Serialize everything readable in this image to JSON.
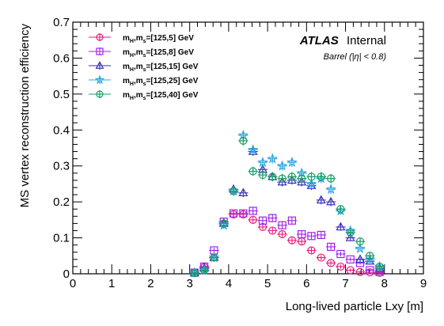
{
  "chart_data": {
    "type": "scatter",
    "title": "",
    "xlabel": "Long-lived particle Lxy [m]",
    "ylabel": "MS vertex reconstruction efficiency",
    "xlim": [
      0,
      9
    ],
    "ylim": [
      0,
      0.7
    ],
    "x_ticks": [
      "0",
      "1",
      "2",
      "3",
      "4",
      "5",
      "6",
      "7",
      "8",
      "9"
    ],
    "y_ticks": [
      "0",
      "0.1",
      "0.2",
      "0.3",
      "0.4",
      "0.5",
      "0.6",
      "0.7"
    ],
    "grid": false,
    "legend_position": "top-left",
    "x_bin_half_width": 0.125,
    "annotations": {
      "experiment": "ATLAS",
      "status": "Internal",
      "region": "Barrel  (|η| < 0.8)"
    },
    "series": [
      {
        "name": "m_H,m_s=[125,5] GeV",
        "legend_main": "m",
        "legend_sub1": "H",
        "legend_mid": ",m",
        "legend_sub2": "s",
        "legend_tail": "=[125,5] GeV",
        "marker": "circle",
        "color": "#e8197c",
        "x": [
          3.125,
          3.375,
          3.625,
          3.875,
          4.125,
          4.375,
          4.625,
          4.875,
          5.125,
          5.375,
          5.625,
          5.875,
          6.125,
          6.375,
          6.625,
          6.875,
          7.125,
          7.375,
          7.625,
          7.875
        ],
        "y": [
          0.003,
          0.018,
          0.045,
          0.14,
          0.165,
          0.165,
          0.15,
          0.13,
          0.12,
          0.11,
          0.093,
          0.09,
          0.065,
          0.045,
          0.03,
          0.02,
          0.01,
          0.005,
          0.004,
          0.003
        ],
        "yerr": [
          0.003,
          0.005,
          0.006,
          0.008,
          0.008,
          0.008,
          0.008,
          0.008,
          0.008,
          0.008,
          0.008,
          0.008,
          0.008,
          0.007,
          0.007,
          0.006,
          0.005,
          0.004,
          0.004,
          0.003
        ]
      },
      {
        "name": "m_H,m_s=[125,8] GeV",
        "legend_main": "m",
        "legend_sub1": "H",
        "legend_mid": ",m",
        "legend_sub2": "s",
        "legend_tail": "=[125,8] GeV",
        "marker": "square",
        "color": "#a020f0",
        "x": [
          3.125,
          3.375,
          3.625,
          3.875,
          4.125,
          4.375,
          4.625,
          4.875,
          5.125,
          5.375,
          5.625,
          5.875,
          6.125,
          6.375,
          6.625,
          6.875,
          7.125,
          7.375,
          7.625,
          7.875
        ],
        "y": [
          0.003,
          0.02,
          0.065,
          0.145,
          0.168,
          0.168,
          0.175,
          0.148,
          0.155,
          0.135,
          0.148,
          0.11,
          0.105,
          0.108,
          0.075,
          0.055,
          0.04,
          0.03,
          0.01,
          0.005
        ],
        "yerr": [
          0.003,
          0.005,
          0.007,
          0.009,
          0.009,
          0.009,
          0.009,
          0.009,
          0.009,
          0.009,
          0.009,
          0.009,
          0.009,
          0.009,
          0.008,
          0.007,
          0.006,
          0.005,
          0.004,
          0.003
        ]
      },
      {
        "name": "m_H,m_s=[125,15] GeV",
        "legend_main": "m",
        "legend_sub1": "H",
        "legend_mid": ",m",
        "legend_sub2": "s",
        "legend_tail": "=[125,15] GeV",
        "marker": "triangle",
        "color": "#3b2fb5",
        "x": [
          3.125,
          3.375,
          3.625,
          3.875,
          4.125,
          4.375,
          4.625,
          4.875,
          5.125,
          5.375,
          5.625,
          5.875,
          6.125,
          6.375,
          6.625,
          6.875,
          7.125,
          7.375,
          7.625,
          7.875
        ],
        "y": [
          0.003,
          0.015,
          0.045,
          0.14,
          0.235,
          0.225,
          0.34,
          0.29,
          0.27,
          0.255,
          0.26,
          0.255,
          0.245,
          0.205,
          0.2,
          0.13,
          0.1,
          0.04,
          0.035,
          0.015
        ],
        "yerr": [
          0.003,
          0.005,
          0.007,
          0.01,
          0.012,
          0.012,
          0.012,
          0.012,
          0.012,
          0.012,
          0.012,
          0.012,
          0.012,
          0.012,
          0.012,
          0.01,
          0.009,
          0.006,
          0.005,
          0.004
        ]
      },
      {
        "name": "m_H,m_s=[125,25] GeV",
        "legend_main": "m",
        "legend_sub1": "H",
        "legend_mid": ",m",
        "legend_sub2": "s",
        "legend_tail": "=[125,25] GeV",
        "marker": "star",
        "color": "#2ca8e0",
        "x": [
          3.125,
          3.375,
          3.625,
          3.875,
          4.125,
          4.375,
          4.625,
          4.875,
          5.125,
          5.375,
          5.625,
          5.875,
          6.125,
          6.375,
          6.625,
          6.875,
          7.125,
          7.375,
          7.625,
          7.875
        ],
        "y": [
          0.003,
          0.01,
          0.045,
          0.135,
          0.23,
          0.385,
          0.345,
          0.31,
          0.32,
          0.3,
          0.31,
          0.28,
          0.25,
          0.265,
          0.235,
          0.175,
          0.12,
          0.07,
          0.04,
          0.02
        ],
        "yerr": [
          0.003,
          0.005,
          0.007,
          0.01,
          0.013,
          0.013,
          0.013,
          0.013,
          0.013,
          0.013,
          0.013,
          0.013,
          0.013,
          0.013,
          0.013,
          0.011,
          0.01,
          0.007,
          0.006,
          0.004
        ]
      },
      {
        "name": "m_H,m_s=[125,40] GeV",
        "legend_main": "m",
        "legend_sub1": "H",
        "legend_mid": ",m",
        "legend_sub2": "s",
        "legend_tail": "=[125,40] GeV",
        "marker": "crosscircle",
        "color": "#1f9e6a",
        "x": [
          3.125,
          3.375,
          3.625,
          3.875,
          4.125,
          4.375,
          4.625,
          4.875,
          5.125,
          5.375,
          5.625,
          5.875,
          6.125,
          6.375,
          6.625,
          6.875,
          7.125,
          7.375,
          7.625,
          7.875
        ],
        "y": [
          0.002,
          0.01,
          0.045,
          0.14,
          0.23,
          0.37,
          0.285,
          0.275,
          0.27,
          0.265,
          0.27,
          0.265,
          0.27,
          0.27,
          0.265,
          0.18,
          0.115,
          0.09,
          0.05,
          0.02
        ],
        "yerr": [
          0.002,
          0.005,
          0.007,
          0.01,
          0.013,
          0.013,
          0.013,
          0.013,
          0.013,
          0.013,
          0.013,
          0.013,
          0.013,
          0.013,
          0.013,
          0.011,
          0.01,
          0.008,
          0.006,
          0.004
        ]
      }
    ]
  }
}
